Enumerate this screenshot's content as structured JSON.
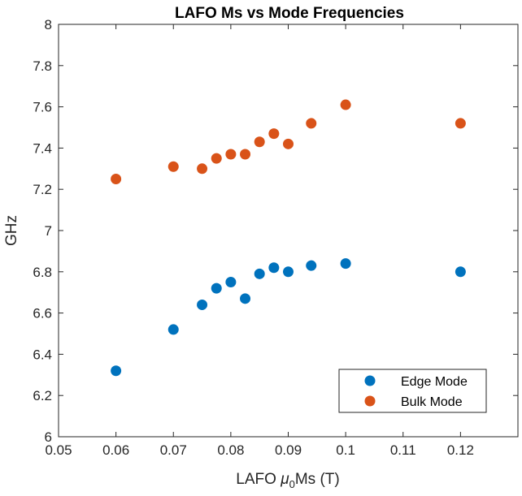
{
  "chart_data": {
    "type": "scatter",
    "title": "LAFO Ms vs Mode Frequencies",
    "xlabel": {
      "prefix": "LAFO ",
      "symbol": "μ",
      "subscript": "0",
      "suffix": "Ms (T)"
    },
    "ylabel": "GHz",
    "xlim": [
      0.05,
      0.13
    ],
    "ylim": [
      6,
      8
    ],
    "xticks": [
      "0.05",
      "0.06",
      "0.07",
      "0.08",
      "0.09",
      "0.1",
      "0.11",
      "0.12"
    ],
    "xtick_values": [
      0.05,
      0.06,
      0.07,
      0.08,
      0.09,
      0.1,
      0.11,
      0.12
    ],
    "yticks": [
      "6",
      "6.2",
      "6.4",
      "6.6",
      "6.8",
      "7",
      "7.2",
      "7.4",
      "7.6",
      "7.8",
      "8"
    ],
    "ytick_values": [
      6,
      6.2,
      6.4,
      6.6,
      6.8,
      7,
      7.2,
      7.4,
      7.6,
      7.8,
      8
    ],
    "grid": false,
    "legend_position": "bottom-right",
    "series": [
      {
        "name": "Edge Mode",
        "color": "#0072BD",
        "x": [
          0.06,
          0.07,
          0.075,
          0.0775,
          0.08,
          0.0825,
          0.085,
          0.0875,
          0.09,
          0.094,
          0.1,
          0.12
        ],
        "y": [
          6.32,
          6.52,
          6.64,
          6.72,
          6.75,
          6.67,
          6.79,
          6.82,
          6.8,
          6.83,
          6.84,
          6.8
        ]
      },
      {
        "name": "Bulk Mode",
        "color": "#D95319",
        "x": [
          0.06,
          0.07,
          0.075,
          0.0775,
          0.08,
          0.0825,
          0.085,
          0.0875,
          0.09,
          0.094,
          0.1,
          0.12
        ],
        "y": [
          7.25,
          7.31,
          7.3,
          7.35,
          7.37,
          7.37,
          7.43,
          7.47,
          7.42,
          7.52,
          7.61,
          7.52
        ]
      }
    ]
  }
}
